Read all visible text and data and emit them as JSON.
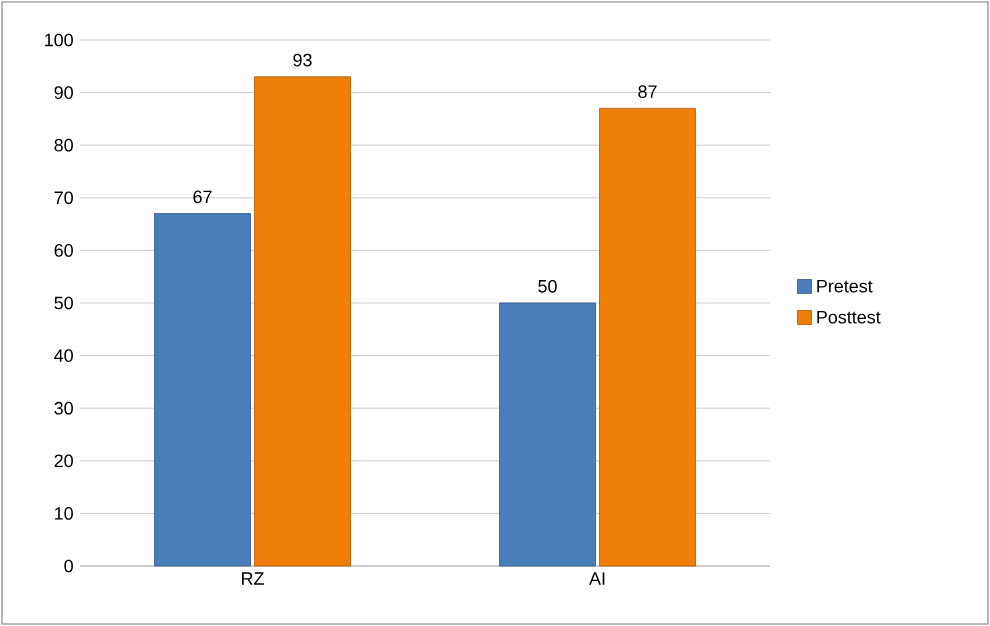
{
  "chart_data": {
    "type": "bar",
    "categories": [
      "RZ",
      "AI"
    ],
    "series": [
      {
        "name": "Pretest",
        "color": "#4a7ebb",
        "values": [
          67,
          50
        ]
      },
      {
        "name": "Posttest",
        "color": "#f07f09",
        "values": [
          93,
          87
        ]
      }
    ],
    "ylim": [
      0,
      100
    ],
    "yticks": [
      0,
      10,
      20,
      30,
      40,
      50,
      60,
      70,
      80,
      90,
      100
    ],
    "grid": "y",
    "legend": "right",
    "data_labels": true
  }
}
